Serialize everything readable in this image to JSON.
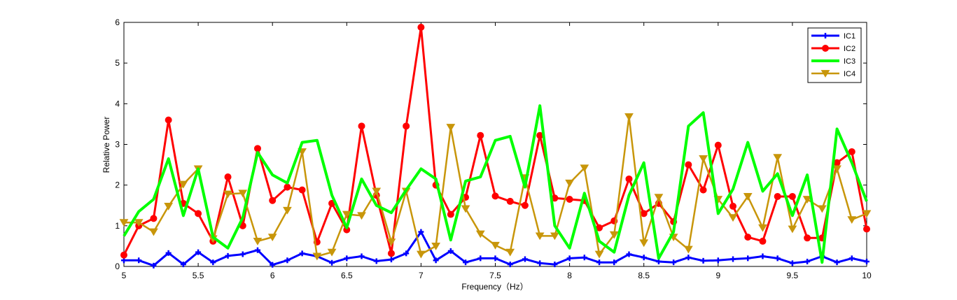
{
  "chart_data": {
    "type": "line",
    "xlabel": "Frequency（Hz）",
    "ylabel": "Relative Power",
    "xlim": [
      5,
      10
    ],
    "ylim": [
      0,
      6
    ],
    "xticks": [
      "5",
      "5.5",
      "6",
      "6.5",
      "7",
      "7.5",
      "8",
      "8.5",
      "9",
      "9.5",
      "10"
    ],
    "yticks": [
      "0",
      "1",
      "2",
      "3",
      "4",
      "5",
      "6"
    ],
    "grid": false,
    "legend": "top-right",
    "x": [
      5.0,
      5.1,
      5.2,
      5.3,
      5.4,
      5.5,
      5.6,
      5.7,
      5.8,
      5.9,
      6.0,
      6.1,
      6.2,
      6.3,
      6.4,
      6.5,
      6.6,
      6.7,
      6.8,
      6.9,
      7.0,
      7.1,
      7.2,
      7.3,
      7.4,
      7.5,
      7.6,
      7.7,
      7.8,
      7.9,
      8.0,
      8.1,
      8.2,
      8.3,
      8.4,
      8.5,
      8.6,
      8.7,
      8.8,
      8.9,
      9.0,
      9.1,
      9.2,
      9.3,
      9.4,
      9.5,
      9.6,
      9.7,
      9.8,
      9.9,
      10.0
    ],
    "series": [
      {
        "name": "IC1",
        "color": "#0000ff",
        "marker": "plus",
        "values": [
          0.15,
          0.15,
          0.02,
          0.33,
          0.05,
          0.35,
          0.1,
          0.26,
          0.3,
          0.4,
          0.04,
          0.15,
          0.32,
          0.25,
          0.09,
          0.2,
          0.25,
          0.13,
          0.17,
          0.32,
          0.85,
          0.15,
          0.38,
          0.1,
          0.2,
          0.2,
          0.05,
          0.18,
          0.08,
          0.05,
          0.2,
          0.22,
          0.1,
          0.1,
          0.3,
          0.22,
          0.12,
          0.1,
          0.22,
          0.14,
          0.15,
          0.18,
          0.2,
          0.25,
          0.2,
          0.08,
          0.12,
          0.25,
          0.1,
          0.2,
          0.12
        ]
      },
      {
        "name": "IC2",
        "color": "#ff0000",
        "marker": "circle",
        "values": [
          0.28,
          1.0,
          1.18,
          3.6,
          1.55,
          1.3,
          0.62,
          2.2,
          1.0,
          2.9,
          1.62,
          1.95,
          1.88,
          0.6,
          1.55,
          0.9,
          3.45,
          1.75,
          0.32,
          3.45,
          5.88,
          2.0,
          1.28,
          1.7,
          3.22,
          1.73,
          1.6,
          1.5,
          3.22,
          1.68,
          1.65,
          1.62,
          0.95,
          1.12,
          2.15,
          1.3,
          1.55,
          1.1,
          2.5,
          1.88,
          2.98,
          1.48,
          0.72,
          0.62,
          1.72,
          1.72,
          0.7,
          0.7,
          2.55,
          2.82,
          0.92
        ]
      },
      {
        "name": "IC3",
        "color": "#00ff00",
        "marker": "none",
        "values": [
          0.75,
          1.35,
          1.65,
          2.65,
          1.25,
          2.4,
          0.72,
          0.45,
          1.2,
          2.8,
          2.25,
          2.05,
          3.05,
          3.1,
          1.75,
          0.95,
          2.15,
          1.5,
          1.32,
          1.88,
          2.4,
          2.15,
          0.65,
          2.1,
          2.2,
          3.1,
          3.2,
          1.95,
          3.95,
          1.0,
          0.45,
          1.8,
          0.62,
          0.35,
          1.75,
          2.55,
          0.2,
          0.85,
          3.45,
          3.78,
          1.3,
          1.9,
          3.05,
          1.85,
          2.28,
          1.25,
          2.25,
          0.1,
          3.38,
          2.55,
          1.6
        ]
      },
      {
        "name": "IC4",
        "color": "#c8960a",
        "marker": "triangle-down",
        "values": [
          1.08,
          1.08,
          0.85,
          1.48,
          2.02,
          2.4,
          0.68,
          1.78,
          1.8,
          0.62,
          0.72,
          1.38,
          2.82,
          0.25,
          0.35,
          1.28,
          1.25,
          1.85,
          0.6,
          1.85,
          0.3,
          0.5,
          3.42,
          1.42,
          0.8,
          0.52,
          0.35,
          2.18,
          0.75,
          0.75,
          2.05,
          2.42,
          0.3,
          0.78,
          3.68,
          0.58,
          1.7,
          0.72,
          0.42,
          2.65,
          1.65,
          1.2,
          1.72,
          0.95,
          2.68,
          0.92,
          1.65,
          1.42,
          2.4,
          1.15,
          1.3
        ]
      }
    ]
  }
}
